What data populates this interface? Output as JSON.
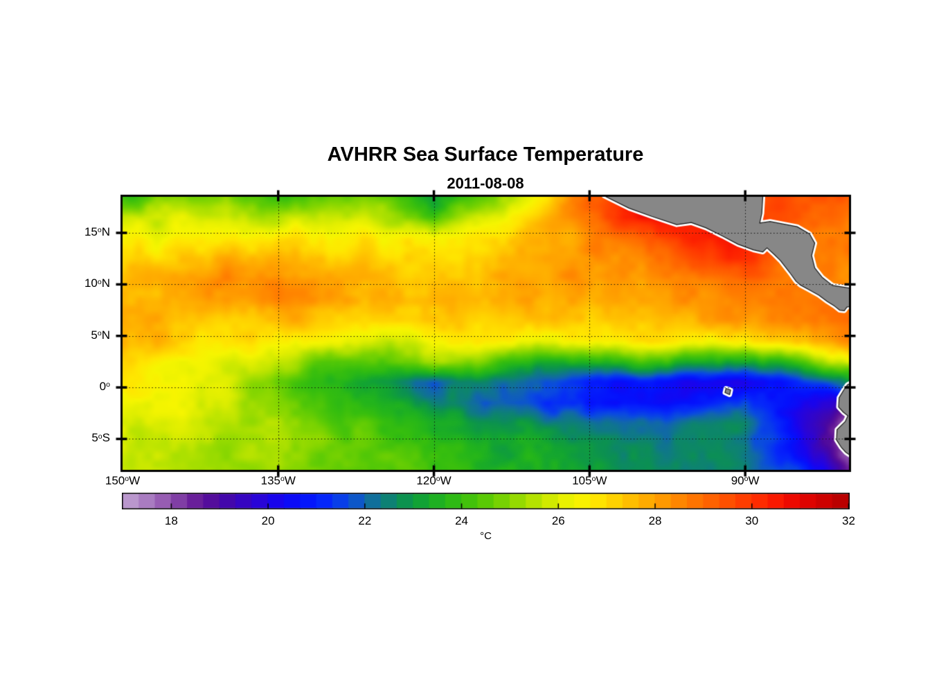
{
  "header": {
    "title": "AVHRR Sea Surface Temperature",
    "subtitle": "2011-08-08"
  },
  "axes": {
    "x_ticks": [
      {
        "num": "150",
        "sup": "o",
        "suf": "W",
        "lon": -150
      },
      {
        "num": "135",
        "sup": "o",
        "suf": "W",
        "lon": -135
      },
      {
        "num": "120",
        "sup": "o",
        "suf": "W",
        "lon": -120
      },
      {
        "num": "105",
        "sup": "o",
        "suf": "W",
        "lon": -105
      },
      {
        "num": "90",
        "sup": "o",
        "suf": "W",
        "lon": -90
      }
    ],
    "y_ticks": [
      {
        "num": "15",
        "sup": "o",
        "suf": "N",
        "lat": 15
      },
      {
        "num": "10",
        "sup": "o",
        "suf": "N",
        "lat": 10
      },
      {
        "num": "5",
        "sup": "o",
        "suf": "N",
        "lat": 5
      },
      {
        "num": "0",
        "sup": "o",
        "suf": "",
        "lat": 0
      },
      {
        "num": "5",
        "sup": "o",
        "suf": "S",
        "lat": -5
      }
    ]
  },
  "colorbar": {
    "min": 17,
    "max": 32,
    "segments": 45,
    "ticks": [
      18,
      20,
      22,
      24,
      26,
      28,
      30,
      32
    ],
    "unit_label": "°C",
    "stops": [
      [
        17.0,
        "#C3A4D2"
      ],
      [
        17.4,
        "#AE85C5"
      ],
      [
        17.8,
        "#9960B4"
      ],
      [
        18.2,
        "#7E3BA4"
      ],
      [
        18.6,
        "#621596"
      ],
      [
        19.0,
        "#4A07A0"
      ],
      [
        19.4,
        "#3A06BA"
      ],
      [
        19.8,
        "#2A04D6"
      ],
      [
        20.2,
        "#1804EE"
      ],
      [
        20.7,
        "#0410FC"
      ],
      [
        21.2,
        "#0528FA"
      ],
      [
        21.7,
        "#0A4CDE"
      ],
      [
        22.0,
        "#1165AE"
      ],
      [
        22.4,
        "#0E7C80"
      ],
      [
        22.8,
        "#0B9052"
      ],
      [
        23.2,
        "#12A432"
      ],
      [
        23.6,
        "#22B41C"
      ],
      [
        24.0,
        "#36BE0E"
      ],
      [
        24.5,
        "#5ACA05"
      ],
      [
        25.0,
        "#86D600"
      ],
      [
        25.5,
        "#B4E200"
      ],
      [
        26.0,
        "#E0EE00"
      ],
      [
        26.4,
        "#F6F500"
      ],
      [
        26.8,
        "#FFE600"
      ],
      [
        27.2,
        "#FFD000"
      ],
      [
        27.6,
        "#FFB800"
      ],
      [
        28.0,
        "#FFA200"
      ],
      [
        28.4,
        "#FF8C00"
      ],
      [
        28.8,
        "#FF7600"
      ],
      [
        29.2,
        "#FF6000"
      ],
      [
        29.6,
        "#FF4A00"
      ],
      [
        30.0,
        "#FF3400"
      ],
      [
        30.4,
        "#FC1E00"
      ],
      [
        30.8,
        "#EF0A00"
      ],
      [
        31.2,
        "#DC0200"
      ],
      [
        31.6,
        "#C80000"
      ],
      [
        32.0,
        "#B00000"
      ]
    ]
  },
  "chart_data": {
    "type": "heatmap",
    "title": "AVHRR Sea Surface Temperature",
    "date": "2011-08-08",
    "units": "°C",
    "lon_range": [
      -150,
      -80
    ],
    "lat_range": [
      -8,
      18.5
    ],
    "grid_lons": [
      -135,
      -120,
      -105,
      -90
    ],
    "grid_lats": [
      15,
      10,
      5,
      0,
      -5
    ],
    "lons": [
      -150,
      -145,
      -140,
      -135,
      -130,
      -125,
      -120,
      -115,
      -110,
      -105,
      -100,
      -95,
      -90,
      -85,
      -80
    ],
    "lats": [
      18.5,
      16.5,
      14.5,
      12.5,
      10.5,
      8.5,
      6.5,
      4.5,
      2.5,
      0.5,
      -1.5,
      -3.5,
      -5.5,
      -8
    ],
    "sst_c": [
      [
        24.0,
        24.8,
        24.8,
        24.2,
        24.8,
        24.5,
        23.2,
        24.8,
        26.5,
        29.3,
        30.3,
        30.5,
        29.8,
        29.5,
        29.3
      ],
      [
        25.6,
        26.0,
        25.8,
        25.6,
        25.9,
        25.4,
        24.2,
        26.0,
        27.2,
        29.0,
        30.6,
        30.8,
        30.0,
        29.4,
        29.0
      ],
      [
        26.3,
        26.6,
        26.6,
        26.9,
        26.8,
        26.6,
        26.4,
        26.9,
        27.5,
        28.4,
        29.2,
        30.6,
        30.6,
        29.0,
        28.6
      ],
      [
        26.9,
        27.3,
        27.6,
        27.9,
        27.4,
        27.1,
        27.0,
        27.3,
        27.8,
        28.2,
        28.6,
        29.8,
        30.2,
        28.6,
        28.4
      ],
      [
        27.3,
        27.9,
        28.4,
        28.5,
        27.9,
        27.5,
        27.3,
        27.5,
        28.0,
        28.2,
        28.3,
        28.6,
        29.1,
        28.6,
        28.2
      ],
      [
        27.6,
        27.9,
        28.1,
        28.2,
        27.9,
        27.7,
        27.5,
        27.7,
        27.9,
        28.0,
        28.2,
        28.3,
        28.5,
        28.5,
        28.7
      ],
      [
        27.9,
        27.6,
        27.4,
        27.6,
        27.4,
        27.2,
        27.4,
        27.3,
        27.1,
        27.3,
        27.5,
        27.8,
        28.0,
        28.4,
        28.6
      ],
      [
        27.6,
        27.3,
        26.9,
        26.6,
        26.4,
        25.9,
        26.4,
        26.6,
        26.4,
        26.6,
        26.9,
        26.6,
        26.4,
        27.6,
        28.2
      ],
      [
        27.1,
        26.6,
        26.3,
        25.6,
        24.2,
        24.7,
        25.2,
        24.6,
        23.6,
        23.9,
        24.1,
        23.6,
        23.2,
        24.2,
        26.2
      ],
      [
        26.6,
        26.3,
        25.9,
        24.6,
        23.6,
        23.1,
        21.9,
        22.6,
        21.6,
        20.9,
        20.6,
        20.4,
        19.9,
        21.2,
        22.5
      ],
      [
        26.4,
        26.1,
        25.6,
        24.9,
        24.1,
        23.6,
        22.6,
        22.1,
        21.4,
        20.9,
        20.4,
        20.6,
        21.4,
        20.4,
        19.2
      ],
      [
        26.1,
        25.9,
        25.4,
        25.1,
        24.6,
        24.1,
        23.4,
        22.9,
        22.6,
        22.4,
        22.1,
        22.4,
        22.6,
        20.0,
        18.0
      ],
      [
        25.9,
        25.6,
        25.4,
        25.1,
        24.9,
        24.4,
        23.9,
        23.4,
        23.1,
        22.9,
        22.6,
        22.6,
        22.4,
        20.5,
        17.6
      ],
      [
        25.6,
        25.6,
        25.3,
        25.1,
        24.9,
        24.6,
        24.1,
        23.6,
        23.4,
        23.1,
        22.9,
        22.6,
        22.4,
        21.5,
        18.5
      ]
    ],
    "land_color": "#878787",
    "coast_halo_color": "#FFFFFF",
    "land_outline_color": "#1a1a1a",
    "land_polygons": [
      {
        "name": "central-america",
        "points": [
          [
            -103.6,
            18.6
          ],
          [
            -101.2,
            17.4
          ],
          [
            -99.0,
            16.6
          ],
          [
            -96.6,
            15.8
          ],
          [
            -95.2,
            16.0
          ],
          [
            -93.8,
            15.5
          ],
          [
            -92.2,
            14.7
          ],
          [
            -90.7,
            13.9
          ],
          [
            -89.2,
            13.35
          ],
          [
            -88.3,
            13.15
          ],
          [
            -87.9,
            13.55
          ],
          [
            -87.2,
            12.9
          ],
          [
            -86.6,
            12.3
          ],
          [
            -85.9,
            11.4
          ],
          [
            -85.6,
            11.0
          ],
          [
            -85.1,
            10.3
          ],
          [
            -84.7,
            9.95
          ],
          [
            -83.8,
            9.45
          ],
          [
            -82.9,
            8.95
          ],
          [
            -82.1,
            8.35
          ],
          [
            -81.4,
            7.9
          ],
          [
            -80.9,
            7.5
          ],
          [
            -80.45,
            7.45
          ],
          [
            -80.2,
            7.8
          ],
          [
            -79.7,
            7.9
          ],
          [
            -79.7,
            9.6
          ],
          [
            -81.6,
            9.9
          ],
          [
            -82.6,
            10.7
          ],
          [
            -83.3,
            11.6
          ],
          [
            -83.6,
            12.8
          ],
          [
            -83.3,
            14.0
          ],
          [
            -83.8,
            14.9
          ],
          [
            -85.0,
            15.6
          ],
          [
            -86.3,
            15.85
          ],
          [
            -87.6,
            16.1
          ],
          [
            -88.6,
            15.95
          ],
          [
            -88.4,
            16.9
          ],
          [
            -88.3,
            18.6
          ]
        ]
      },
      {
        "name": "south-america",
        "points": [
          [
            -79.7,
            0.5
          ],
          [
            -80.15,
            0.25
          ],
          [
            -80.5,
            -0.25
          ],
          [
            -80.95,
            -1.0
          ],
          [
            -81.0,
            -1.9
          ],
          [
            -80.55,
            -2.4
          ],
          [
            -80.1,
            -2.75
          ],
          [
            -80.35,
            -3.3
          ],
          [
            -81.15,
            -4.1
          ],
          [
            -81.2,
            -5.1
          ],
          [
            -80.75,
            -5.8
          ],
          [
            -80.3,
            -6.3
          ],
          [
            -79.7,
            -6.7
          ]
        ]
      },
      {
        "name": "galapagos-islands",
        "points": [
          [
            -91.85,
            -0.1
          ],
          [
            -91.4,
            -0.25
          ],
          [
            -91.5,
            -0.7
          ],
          [
            -91.95,
            -0.5
          ]
        ]
      }
    ]
  }
}
